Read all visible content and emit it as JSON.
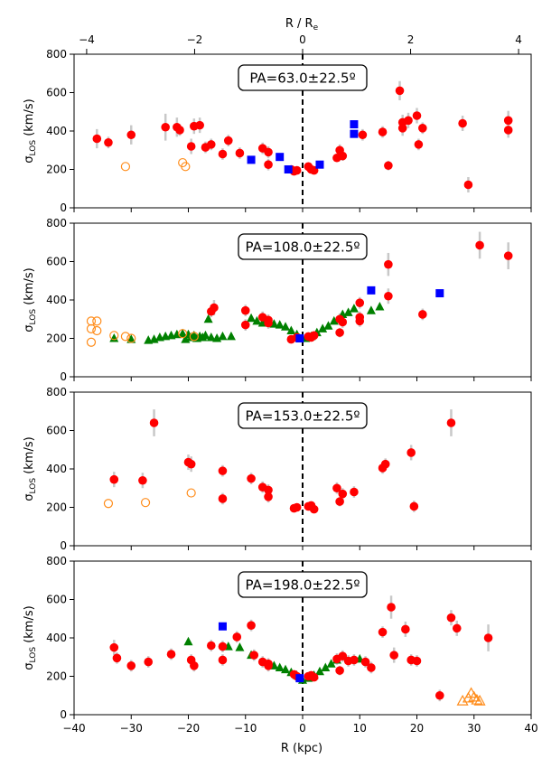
{
  "chart_data": {
    "type": "scatter",
    "figure": {
      "top_axis_label": "R / R",
      "top_axis_label_sub": "e",
      "top_ticks": [
        -4,
        -2,
        0,
        2,
        4
      ],
      "top_tick_labels": [
        "−4",
        "−2",
        "0",
        "2",
        "4"
      ],
      "xlabel": "R (kpc)",
      "ylabel_main": "σ",
      "ylabel_sub": "LOS",
      "ylabel_tail": " (km/s)",
      "xlim": [
        -40,
        40
      ],
      "ylim": [
        0,
        800
      ],
      "x_ticks": [
        -40,
        -30,
        -20,
        -10,
        0,
        10,
        20,
        30,
        40
      ],
      "x_tick_labels": [
        "−40",
        "−30",
        "−20",
        "−10",
        "0",
        "10",
        "20",
        "30",
        "40"
      ],
      "y_ticks": [
        0,
        200,
        400,
        600,
        800
      ],
      "y_tick_labels": [
        "0",
        "200",
        "400",
        "600",
        "800"
      ],
      "kpc_per_Re": 9.45,
      "center_line": "dashed vertical at R = 0"
    },
    "panels": [
      {
        "title": "PA=63.0±22.5º",
        "red": [
          [
            -36,
            360,
            50
          ],
          [
            -34,
            340,
            30
          ],
          [
            -30,
            380,
            50
          ],
          [
            -24,
            420,
            70
          ],
          [
            -22,
            420,
            50
          ],
          [
            -21.5,
            405,
            30
          ],
          [
            -19,
            425,
            40
          ],
          [
            -18,
            430,
            40
          ],
          [
            -19.5,
            320,
            40
          ],
          [
            -17,
            315,
            30
          ],
          [
            -16,
            330,
            30
          ],
          [
            -14,
            280,
            30
          ],
          [
            -13,
            350,
            30
          ],
          [
            -11,
            285,
            30
          ],
          [
            -7,
            310,
            30
          ],
          [
            -6,
            290,
            30
          ],
          [
            -6,
            225,
            30
          ],
          [
            -2,
            200,
            20
          ],
          [
            -1.5,
            190,
            20
          ],
          [
            -1,
            195,
            20
          ],
          [
            1,
            215,
            20
          ],
          [
            1.5,
            200,
            20
          ],
          [
            2,
            195,
            20
          ],
          [
            6,
            260,
            20
          ],
          [
            6.5,
            300,
            30
          ],
          [
            7,
            270,
            25
          ],
          [
            10.5,
            380,
            30
          ],
          [
            14,
            395,
            30
          ],
          [
            15,
            220,
            25
          ],
          [
            17,
            610,
            50
          ],
          [
            17.5,
            445,
            40
          ],
          [
            17.5,
            415,
            40
          ],
          [
            18.5,
            455,
            40
          ],
          [
            20,
            480,
            40
          ],
          [
            20.3,
            330,
            30
          ],
          [
            21,
            415,
            30
          ],
          [
            28,
            440,
            40
          ],
          [
            29,
            120,
            40
          ],
          [
            36,
            455,
            50
          ],
          [
            36,
            405,
            40
          ]
        ],
        "blue": [
          [
            -9,
            250
          ],
          [
            -4,
            265
          ],
          [
            -2.5,
            200
          ],
          [
            3,
            225
          ],
          [
            9,
            435
          ],
          [
            9,
            385
          ]
        ],
        "green": [],
        "orange_circle": [
          [
            -31,
            215
          ],
          [
            -21,
            235
          ],
          [
            -20.5,
            215
          ]
        ],
        "orange_triangle": []
      },
      {
        "title": "PA=108.0±22.5º",
        "red": [
          [
            -16,
            340,
            30
          ],
          [
            -15.5,
            360,
            40
          ],
          [
            -10,
            345,
            30
          ],
          [
            -10,
            270,
            30
          ],
          [
            -7,
            310,
            30
          ],
          [
            -6,
            295,
            30
          ],
          [
            -6,
            280,
            30
          ],
          [
            -2,
            195,
            20
          ],
          [
            -1,
            205,
            20
          ],
          [
            1,
            210,
            20
          ],
          [
            1.5,
            205,
            20
          ],
          [
            2,
            215,
            20
          ],
          [
            6.5,
            300,
            30
          ],
          [
            7,
            285,
            30
          ],
          [
            6.5,
            230,
            25
          ],
          [
            10,
            290,
            30
          ],
          [
            10,
            310,
            30
          ],
          [
            10,
            385,
            30
          ],
          [
            15,
            585,
            60
          ],
          [
            15,
            420,
            40
          ],
          [
            21,
            325,
            30
          ],
          [
            31,
            685,
            70
          ],
          [
            36,
            630,
            70
          ]
        ],
        "blue": [
          [
            -0.5,
            200
          ],
          [
            12,
            450
          ],
          [
            24,
            435
          ]
        ],
        "green": [
          [
            -33,
            200
          ],
          [
            -30,
            195
          ],
          [
            -27,
            190
          ],
          [
            -26,
            195
          ],
          [
            -25,
            205
          ],
          [
            -24,
            210
          ],
          [
            -23,
            215
          ],
          [
            -22,
            220
          ],
          [
            -21,
            225
          ],
          [
            -20,
            220
          ],
          [
            -19,
            215
          ],
          [
            -18,
            210
          ],
          [
            -17,
            215
          ],
          [
            -16,
            205
          ],
          [
            -15,
            200
          ],
          [
            -14,
            210
          ],
          [
            -20.5,
            195
          ],
          [
            -19.5,
            205
          ],
          [
            -18.5,
            200
          ],
          [
            -17.5,
            205
          ],
          [
            -16.5,
            300
          ],
          [
            -12.5,
            210
          ],
          [
            -9,
            305
          ],
          [
            -8,
            290
          ],
          [
            -7,
            280
          ],
          [
            -5,
            275
          ],
          [
            -4,
            270
          ],
          [
            -3,
            260
          ],
          [
            -2,
            240
          ],
          [
            -1,
            220
          ],
          [
            -0.5,
            200
          ],
          [
            0.5,
            200
          ],
          [
            1.5,
            210
          ],
          [
            2.5,
            230
          ],
          [
            3.5,
            250
          ],
          [
            4.5,
            265
          ],
          [
            5.5,
            290
          ],
          [
            7,
            325
          ],
          [
            8,
            335
          ],
          [
            9,
            355
          ],
          [
            12,
            345
          ],
          [
            13.5,
            365
          ]
        ],
        "orange_circle": [
          [
            -37,
            290
          ],
          [
            -37,
            250
          ],
          [
            -36,
            240
          ],
          [
            -36,
            290
          ],
          [
            -37,
            180
          ],
          [
            -33,
            215
          ],
          [
            -31,
            210
          ],
          [
            -30,
            200
          ],
          [
            -21,
            225
          ],
          [
            -19,
            210
          ]
        ],
        "orange_triangle": []
      },
      {
        "title": "PA=153.0±22.5º",
        "red": [
          [
            -33,
            345,
            40
          ],
          [
            -28,
            340,
            40
          ],
          [
            -26,
            640,
            70
          ],
          [
            -20,
            435,
            40
          ],
          [
            -19.5,
            425,
            40
          ],
          [
            -14,
            390,
            30
          ],
          [
            -14,
            245,
            30
          ],
          [
            -9,
            350,
            30
          ],
          [
            -7,
            305,
            30
          ],
          [
            -6,
            290,
            30
          ],
          [
            -6,
            255,
            30
          ],
          [
            -1.5,
            195,
            20
          ],
          [
            -1,
            200,
            20
          ],
          [
            1,
            205,
            20
          ],
          [
            1.5,
            210,
            20
          ],
          [
            2,
            190,
            20
          ],
          [
            6,
            300,
            30
          ],
          [
            6.5,
            230,
            25
          ],
          [
            7,
            270,
            30
          ],
          [
            9,
            280,
            30
          ],
          [
            14,
            405,
            30
          ],
          [
            14.5,
            425,
            30
          ],
          [
            19,
            485,
            40
          ],
          [
            19.5,
            205,
            30
          ],
          [
            26,
            640,
            70
          ]
        ],
        "blue": [],
        "green": [],
        "orange_circle": [
          [
            -34,
            220
          ],
          [
            -27.5,
            225
          ],
          [
            -19.5,
            275
          ]
        ],
        "orange_triangle": []
      },
      {
        "title": "PA=198.0±22.5º",
        "red": [
          [
            -33,
            350,
            40
          ],
          [
            -32.5,
            295,
            30
          ],
          [
            -30,
            255,
            30
          ],
          [
            -27,
            275,
            30
          ],
          [
            -23,
            315,
            30
          ],
          [
            -19.5,
            285,
            30
          ],
          [
            -19,
            255,
            30
          ],
          [
            -16,
            360,
            30
          ],
          [
            -14,
            355,
            30
          ],
          [
            -14,
            285,
            30
          ],
          [
            -11.5,
            405,
            30
          ],
          [
            -9,
            465,
            30
          ],
          [
            -8.5,
            310,
            30
          ],
          [
            -7,
            275,
            30
          ],
          [
            -6,
            265,
            30
          ],
          [
            -6,
            255,
            30
          ],
          [
            -1.5,
            210,
            20
          ],
          [
            -1,
            200,
            20
          ],
          [
            1,
            200,
            20
          ],
          [
            1.5,
            205,
            20
          ],
          [
            2,
            195,
            20
          ],
          [
            6,
            290,
            30
          ],
          [
            6.5,
            230,
            25
          ],
          [
            7,
            305,
            30
          ],
          [
            8,
            280,
            30
          ],
          [
            9,
            285,
            30
          ],
          [
            11,
            275,
            30
          ],
          [
            12,
            245,
            30
          ],
          [
            14,
            430,
            30
          ],
          [
            15.5,
            560,
            60
          ],
          [
            16,
            310,
            40
          ],
          [
            18,
            445,
            40
          ],
          [
            19,
            285,
            30
          ],
          [
            20,
            280,
            30
          ],
          [
            26,
            505,
            40
          ],
          [
            27,
            450,
            40
          ],
          [
            24,
            100,
            30
          ],
          [
            32.5,
            400,
            70
          ]
        ],
        "blue": [
          [
            -14,
            460
          ],
          [
            -0.5,
            190
          ]
        ],
        "green": [
          [
            -20,
            380
          ],
          [
            -13,
            355
          ],
          [
            -11,
            350
          ],
          [
            -9,
            310
          ],
          [
            -5,
            255
          ],
          [
            -4,
            245
          ],
          [
            -3,
            235
          ],
          [
            -2,
            220
          ],
          [
            -1,
            205
          ],
          [
            0,
            180
          ],
          [
            1,
            190
          ],
          [
            2,
            205
          ],
          [
            3,
            225
          ],
          [
            4,
            245
          ],
          [
            5,
            265
          ],
          [
            6,
            285
          ],
          [
            10,
            290
          ]
        ],
        "orange_circle": [],
        "orange_triangle": [
          [
            28,
            70
          ],
          [
            29,
            85
          ],
          [
            29.5,
            110
          ],
          [
            30,
            90
          ],
          [
            30.5,
            75
          ],
          [
            31,
            70
          ]
        ]
      }
    ]
  }
}
